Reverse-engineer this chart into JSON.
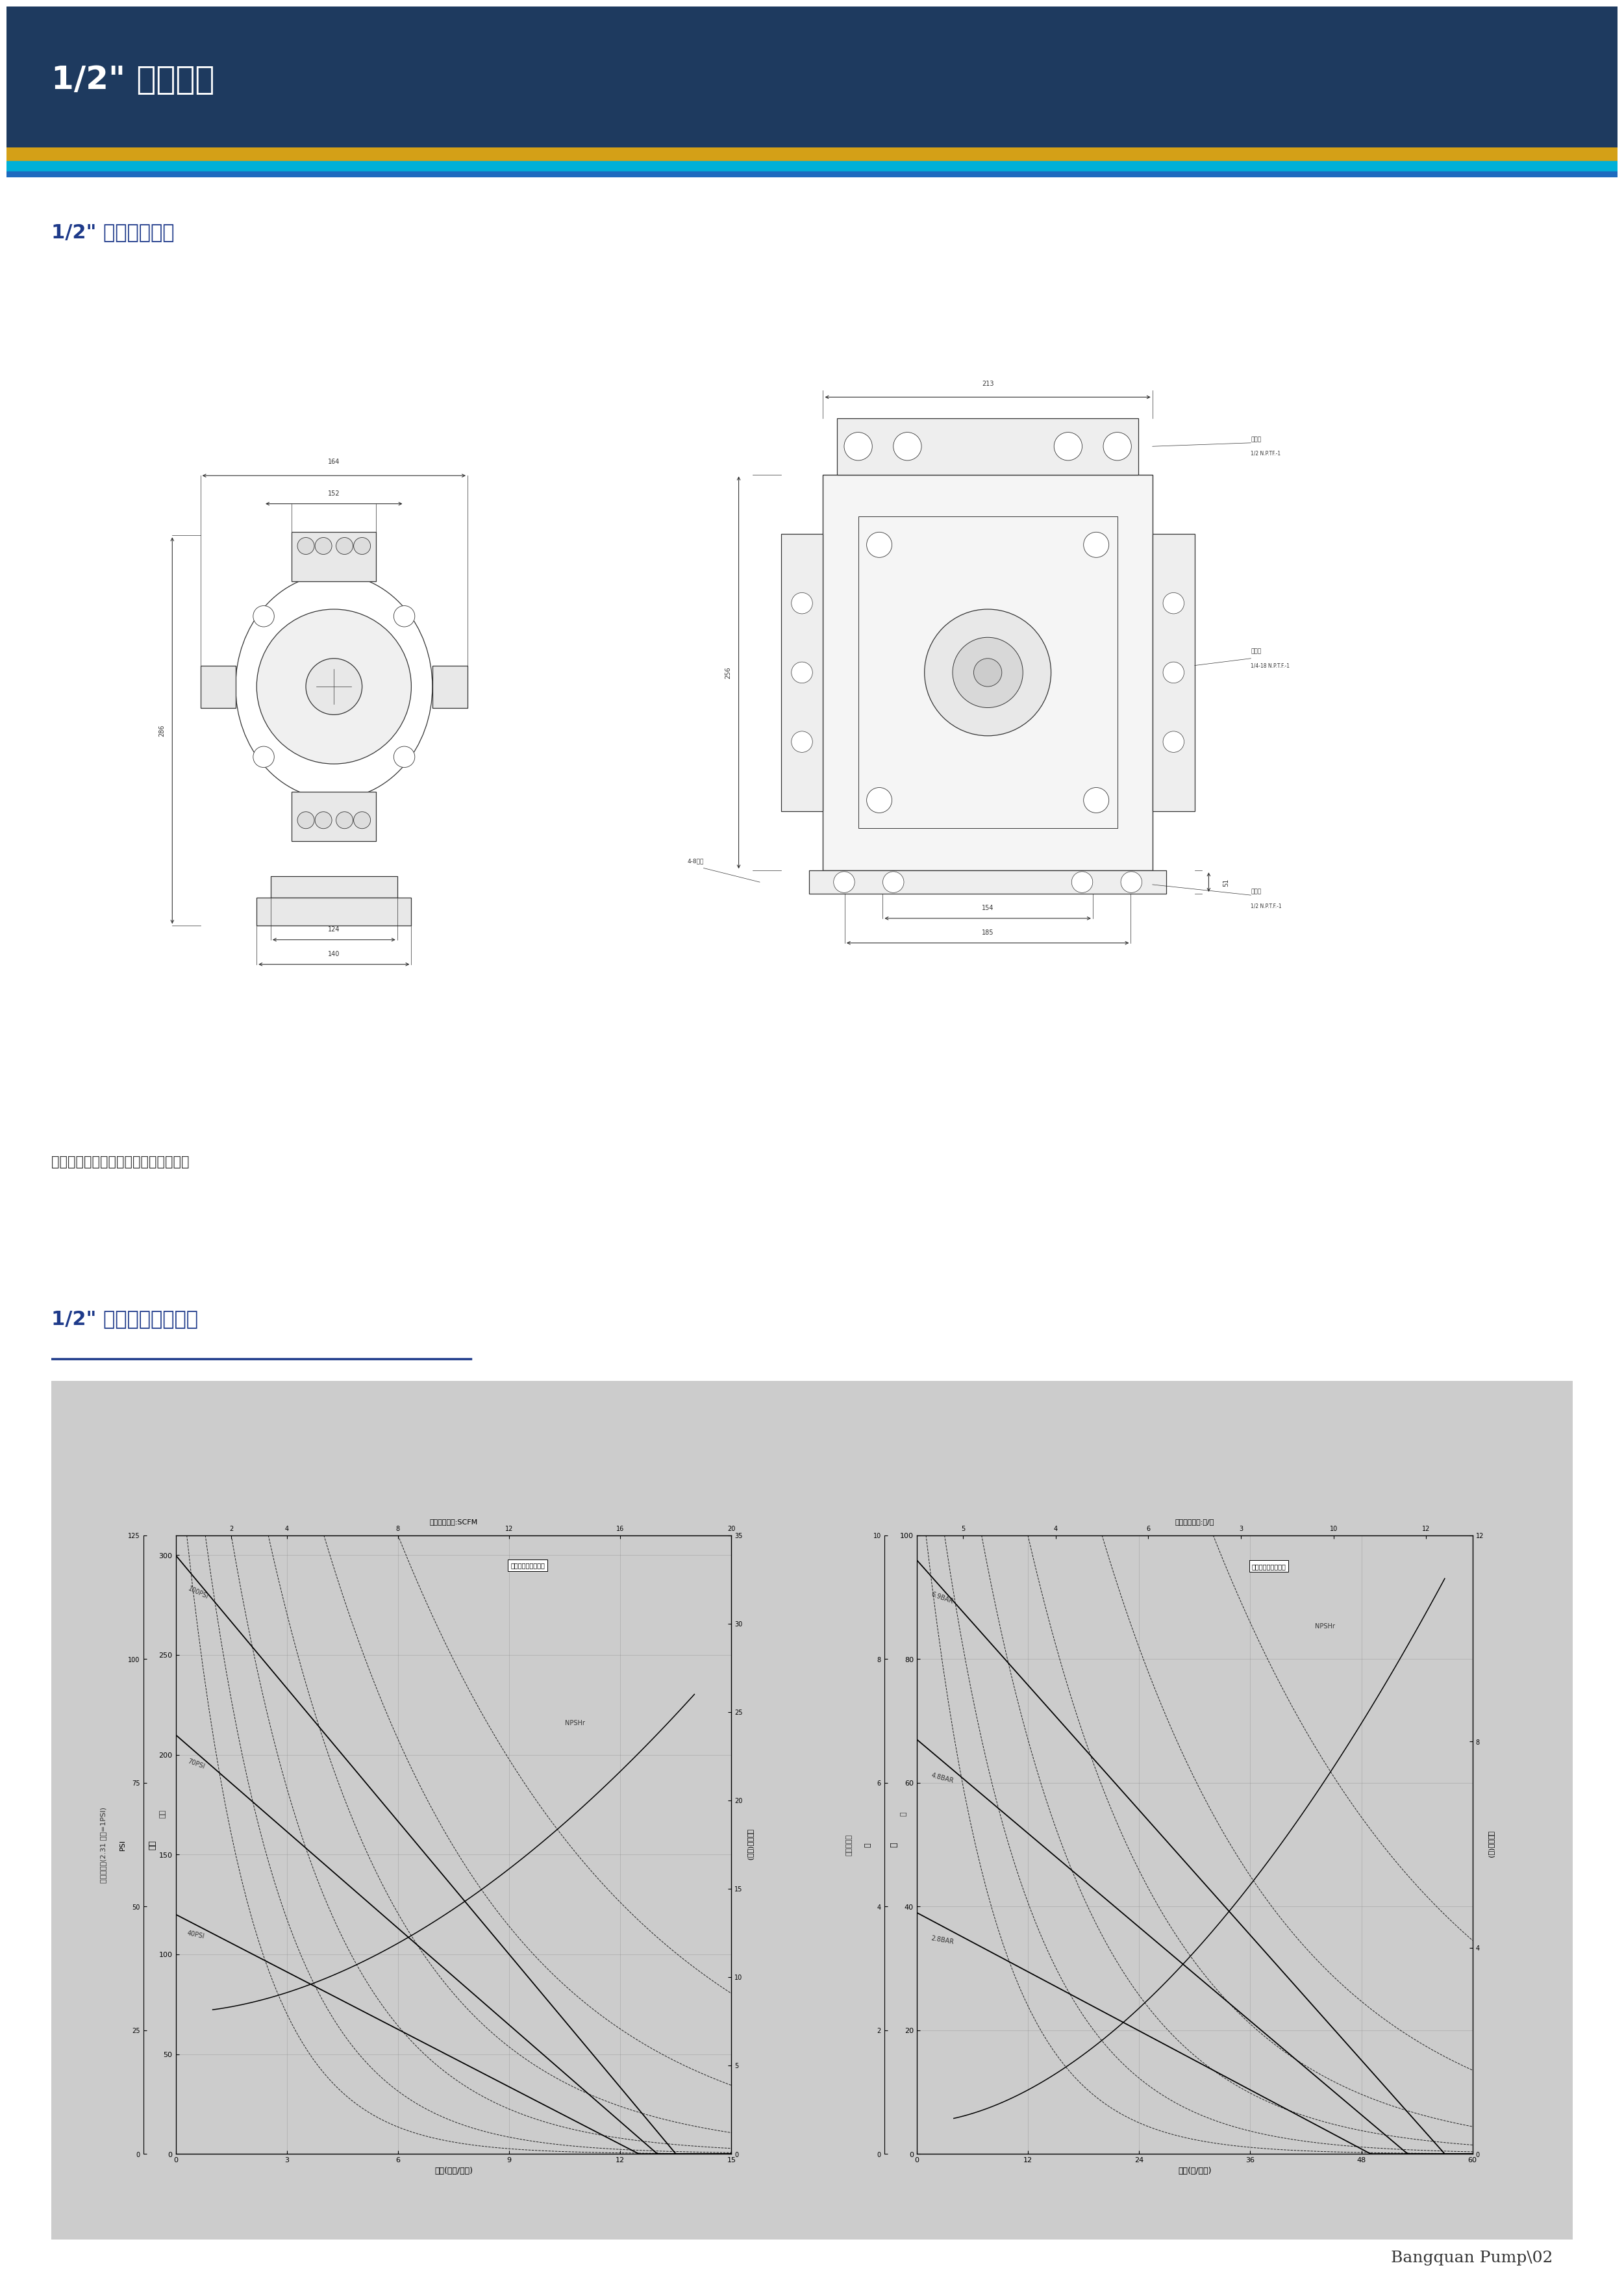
{
  "page_bg": "#ffffff",
  "header_bg": "#1e3a5f",
  "header_stripe_gold": "#d4a017",
  "header_stripe_cyan": "#00b0d8",
  "header_stripe_blue": "#1e6abf",
  "header_title": "1/2\" 非金属泵",
  "header_title_color": "#ffffff",
  "section1_title": "1/2\" 非金属泵尺寸",
  "section2_title": "1/2\" 非金属泵性能曲线",
  "note_text": "注：所有尺寸仅供参考，单位为毫米。",
  "footer_text": "Bangquan Pump\\02",
  "chart_bg": "#cccccc",
  "dim_color": "#333333",
  "label_color": "#1e3a8a",
  "left_chart": {
    "title_top": "耗气量，单位:SCFM",
    "air_ticks": [
      2,
      4,
      8,
      12,
      16,
      20
    ],
    "legend_box": "基于室温下水的性能",
    "pressure_labels": [
      "100PSI",
      "70PSI",
      "40PSI"
    ],
    "xlabel": "流量(加仓/分钟)",
    "ylabel_left": "英尺",
    "ylabel_left2": "排出总压头(2.31 英尺=1PSI)",
    "ylabel_right": "汽蚀余量(英尺)",
    "ylabel_psi": "PSI",
    "npsh_label": "NPSHr",
    "xlim": [
      0,
      15
    ],
    "ylim": [
      0,
      310
    ],
    "psi_ylim": [
      0,
      125
    ],
    "npsh_ylim": [
      0,
      35
    ],
    "x_ticks": [
      0,
      3,
      6,
      9,
      12,
      15
    ],
    "y_ticks_head": [
      0,
      50,
      100,
      150,
      200,
      250,
      300
    ],
    "y_ticks_psi": [
      0,
      25,
      50,
      75,
      100,
      125
    ],
    "y_ticks_npsh": [
      0,
      5,
      10,
      15,
      20,
      25,
      30,
      35
    ]
  },
  "right_chart": {
    "title_top": "耗气量，单位:升/秒",
    "air_ticks": [
      5,
      4,
      6,
      3,
      10,
      12
    ],
    "air_tick_positions": [
      5,
      15,
      25,
      35,
      45,
      55
    ],
    "legend_box": "基于室温下水的性能",
    "pressure_labels": [
      "6.9BAR",
      "4.8BAR",
      "2.8BAR"
    ],
    "xlabel": "流量(升/分钟)",
    "ylabel_left": "米",
    "ylabel_left2": "排出总压水",
    "ylabel_right": "汽蚀余量(米)",
    "ylabel_bar": "巴",
    "npsh_label": "NPSHr",
    "xlim": [
      0,
      60
    ],
    "ylim": [
      0,
      100
    ],
    "bar_ylim": [
      0,
      10
    ],
    "npsh_ylim": [
      0,
      12
    ],
    "x_ticks": [
      0,
      12,
      24,
      36,
      48,
      60
    ],
    "y_ticks_head": [
      0,
      20,
      40,
      60,
      80,
      100
    ],
    "y_ticks_bar": [
      0,
      2,
      4,
      6,
      8,
      10
    ],
    "y_ticks_npsh": [
      0,
      4,
      8,
      12
    ]
  }
}
